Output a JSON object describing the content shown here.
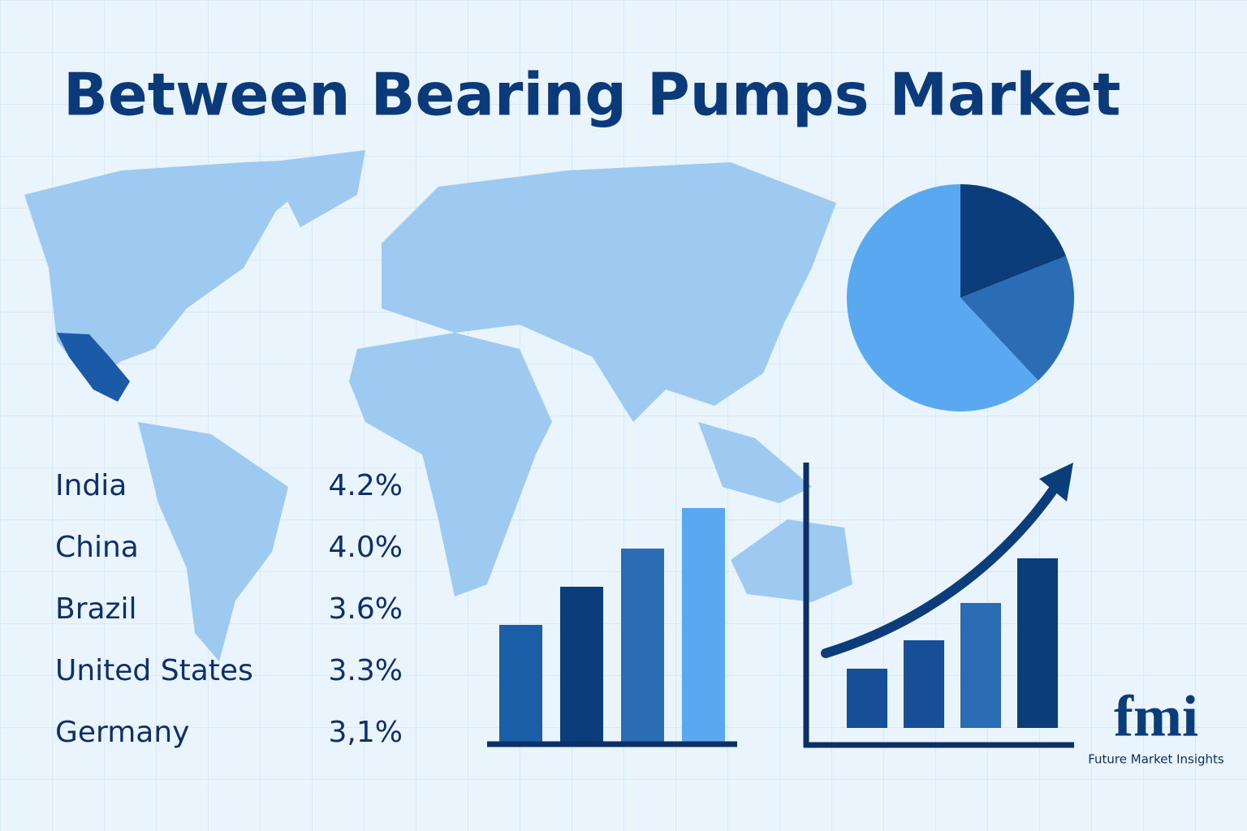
{
  "header": {
    "title": "Between Bearing Pumps Market"
  },
  "rankings": [
    {
      "country": "India",
      "growth": "4.2%"
    },
    {
      "country": "China",
      "growth": "4.0%"
    },
    {
      "country": "Brazil",
      "growth": "3.6%"
    },
    {
      "country": "United States",
      "growth": "3.3%"
    },
    {
      "country": "Germany",
      "growth": "3,1%"
    }
  ],
  "chart_data": [
    {
      "type": "pie",
      "values": [
        19,
        19,
        62
      ],
      "colors": [
        "#0b3d7a",
        "#2a6db5",
        "#5aa9f0"
      ]
    },
    {
      "type": "bar",
      "values": [
        145,
        192,
        239,
        289
      ],
      "colors": [
        "#1a5ea8",
        "#0b3d7a",
        "#2a6db5",
        "#5aa9f0"
      ],
      "ylim": [
        0,
        310
      ]
    },
    {
      "type": "bar",
      "values": [
        73,
        108,
        154,
        209
      ],
      "colors": [
        "#174f96",
        "#174f96",
        "#2a6db5",
        "#0b3d7a"
      ],
      "ylim": [
        0,
        320
      ]
    }
  ],
  "logo": {
    "mark": "fmi",
    "name": "Future Market Insights"
  }
}
